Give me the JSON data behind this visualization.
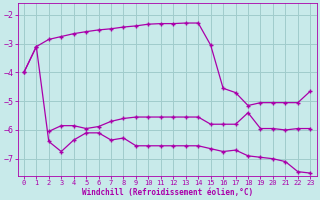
{
  "xlabel": "Windchill (Refroidissement éolien,°C)",
  "background_color": "#c8eaea",
  "grid_color": "#a0cccc",
  "line_color": "#aa00aa",
  "xlim": [
    -0.5,
    23.5
  ],
  "ylim": [
    -7.6,
    -1.6
  ],
  "yticks": [
    -7,
    -6,
    -5,
    -4,
    -3,
    -2
  ],
  "xticks": [
    0,
    1,
    2,
    3,
    4,
    5,
    6,
    7,
    8,
    9,
    10,
    11,
    12,
    13,
    14,
    15,
    16,
    17,
    18,
    19,
    20,
    21,
    22,
    23
  ],
  "series1_x": [
    0,
    1,
    2,
    3,
    4,
    5,
    6,
    7,
    8,
    9,
    10,
    11,
    12,
    13,
    14,
    15,
    16,
    17,
    18,
    19,
    20,
    21,
    22,
    23
  ],
  "series1": [
    -4.0,
    -3.1,
    -2.85,
    -2.75,
    -2.65,
    -2.58,
    -2.52,
    -2.48,
    -2.42,
    -2.38,
    -2.32,
    -2.3,
    -2.3,
    -2.28,
    -2.28,
    -3.05,
    -4.55,
    -4.7,
    -5.15,
    -5.05,
    -5.05,
    -5.05,
    -5.05,
    -4.65
  ],
  "series2_x": [
    2,
    3,
    4,
    5,
    6,
    7,
    8,
    9,
    10,
    11,
    12,
    13,
    14,
    15,
    16,
    17,
    18,
    19,
    20,
    21,
    22,
    23
  ],
  "series2": [
    -6.05,
    -5.85,
    -5.85,
    -5.95,
    -5.88,
    -5.7,
    -5.6,
    -5.55,
    -5.55,
    -5.55,
    -5.55,
    -5.55,
    -5.55,
    -5.8,
    -5.8,
    -5.8,
    -5.4,
    -5.95,
    -5.95,
    -6.0,
    -5.95,
    -5.95
  ],
  "series3_x": [
    0,
    1,
    2,
    3,
    4,
    5,
    6,
    7,
    8,
    9,
    10,
    11,
    12,
    13,
    14,
    15,
    16,
    17,
    18,
    19,
    20,
    21,
    22,
    23
  ],
  "series3": [
    -4.0,
    -3.1,
    -6.4,
    -6.75,
    -6.35,
    -6.1,
    -6.1,
    -6.35,
    -6.28,
    -6.55,
    -6.55,
    -6.55,
    -6.55,
    -6.55,
    -6.55,
    -6.65,
    -6.75,
    -6.7,
    -6.9,
    -6.95,
    -7.0,
    -7.1,
    -7.45,
    -7.5
  ]
}
